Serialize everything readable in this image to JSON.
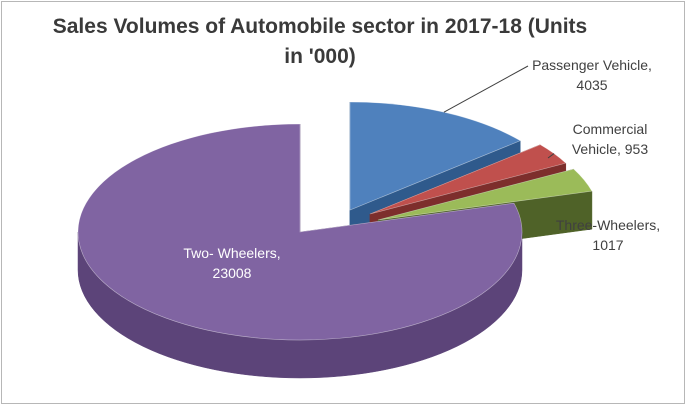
{
  "chart_data": {
    "type": "pie",
    "title_lines": [
      "Sales Volumes of Automobile sector in 2017-18 (Units",
      "in '000)"
    ],
    "style": "3d-exploded",
    "slices": [
      {
        "label": "Passenger Vehicle",
        "value": 4035,
        "color": "#4f81bd",
        "side": "#2f5a8c",
        "label_lines": [
          "Passenger Vehicle,",
          "4035"
        ]
      },
      {
        "label": "Commercial Vehicle",
        "value": 953,
        "color": "#c0504d",
        "side": "#7d2e2c",
        "label_lines": [
          "Commercial",
          "Vehicle, 953"
        ]
      },
      {
        "label": "Three-Wheelers",
        "value": 1017,
        "color": "#9bbb59",
        "side": "#4f6228",
        "label_lines": [
          "Three-Wheelers,",
          "1017"
        ]
      },
      {
        "label": "Two- Wheelers",
        "value": 23008,
        "color": "#8064a2",
        "side": "#5c4479",
        "label_lines": [
          "Two- Wheelers,",
          "23008"
        ]
      }
    ]
  }
}
